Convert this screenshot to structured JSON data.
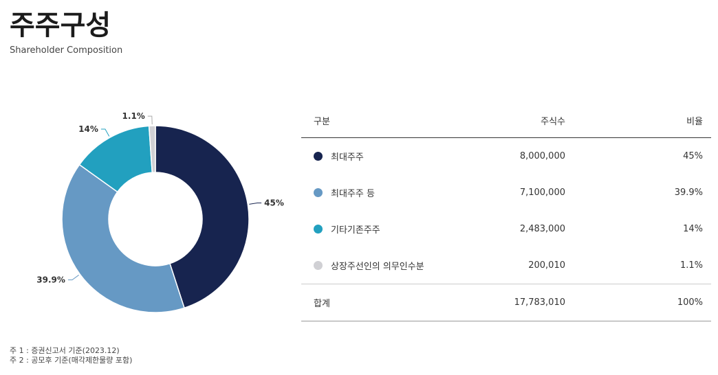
{
  "header": {
    "title": "주주구성",
    "subtitle": "Shareholder Composition"
  },
  "table": {
    "headers": {
      "category": "구분",
      "shares": "주식수",
      "ratio": "비율"
    },
    "rows": [
      {
        "name": "최대주주",
        "shares": "8,000,000",
        "ratio": "45%",
        "color": "#17244f"
      },
      {
        "name": "최대주주 등",
        "shares": "7,100,000",
        "ratio": "39.9%",
        "color": "#6699c4"
      },
      {
        "name": "기타기존주주",
        "shares": "2,483,000",
        "ratio": "14%",
        "color": "#22a0bf"
      },
      {
        "name": "상장주선인의 의무인수분",
        "shares": "200,010",
        "ratio": "1.1%",
        "color": "#d0d0d4"
      }
    ],
    "total": {
      "name": "합계",
      "shares": "17,783,010",
      "ratio": "100%"
    }
  },
  "notes": [
    "주 1 : 증권신고서 기준(2023.12)",
    "주 2 : 공모후 기준(매각제한물량 포함)"
  ],
  "chart_data": {
    "type": "pie",
    "donut": true,
    "categories": [
      "최대주주",
      "최대주주 등",
      "기타기존주주",
      "상장주선인의 의무인수분"
    ],
    "values": [
      45,
      39.9,
      14,
      1.1
    ],
    "labels": [
      "45%",
      "39.9%",
      "14%",
      "1.1%"
    ],
    "colors": [
      "#17244f",
      "#6699c4",
      "#22a0bf",
      "#d0d0d4"
    ]
  }
}
